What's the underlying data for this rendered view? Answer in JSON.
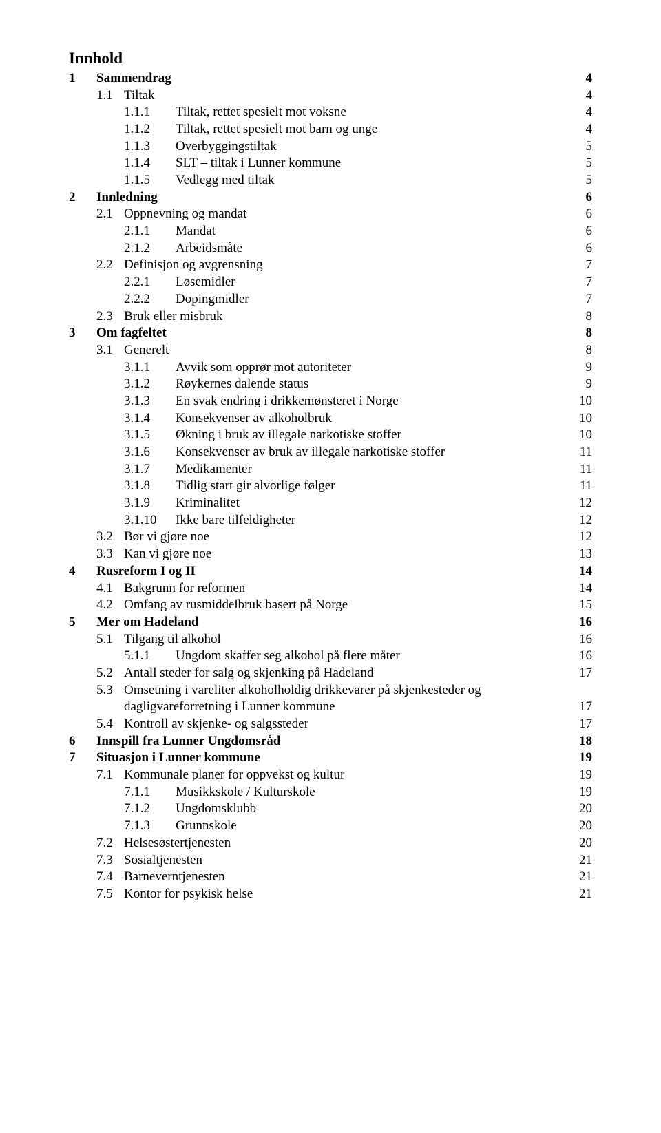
{
  "heading": "Innhold",
  "colors": {
    "text": "#000000",
    "background": "#ffffff"
  },
  "typography": {
    "font_family": "Times New Roman",
    "body_size_pt": 14,
    "heading_size_pt": 17,
    "bold_weight": 700
  },
  "entries": [
    {
      "num": "1",
      "title": "Sammendrag",
      "page": "4",
      "level": 0,
      "bold": true
    },
    {
      "num": "1.1",
      "title": "Tiltak",
      "page": "4",
      "level": 1
    },
    {
      "num": "1.1.1",
      "title": "Tiltak, rettet spesielt mot voksne",
      "page": "4",
      "level": 2
    },
    {
      "num": "1.1.2",
      "title": "Tiltak, rettet spesielt mot barn og unge",
      "page": "4",
      "level": 2
    },
    {
      "num": "1.1.3",
      "title": "Overbyggingstiltak",
      "page": "5",
      "level": 2
    },
    {
      "num": "1.1.4",
      "title": "SLT – tiltak i Lunner kommune",
      "page": "5",
      "level": 2
    },
    {
      "num": "1.1.5",
      "title": "Vedlegg med tiltak",
      "page": "5",
      "level": 2
    },
    {
      "num": "2",
      "title": "Innledning",
      "page": "6",
      "level": 0,
      "bold": true
    },
    {
      "num": "2.1",
      "title": "Oppnevning og mandat",
      "page": "6",
      "level": 1
    },
    {
      "num": "2.1.1",
      "title": "Mandat",
      "page": "6",
      "level": 2
    },
    {
      "num": "2.1.2",
      "title": "Arbeidsmåte",
      "page": "6",
      "level": 2
    },
    {
      "num": "2.2",
      "title": "Definisjon og avgrensning",
      "page": "7",
      "level": 1
    },
    {
      "num": "2.2.1",
      "title": "Løsemidler",
      "page": "7",
      "level": 2
    },
    {
      "num": "2.2.2",
      "title": "Dopingmidler",
      "page": "7",
      "level": 2
    },
    {
      "num": "2.3",
      "title": "Bruk eller misbruk",
      "page": "8",
      "level": 1
    },
    {
      "num": "3",
      "title": "Om fagfeltet",
      "page": "8",
      "level": 0,
      "bold": true
    },
    {
      "num": "3.1",
      "title": "Generelt",
      "page": "8",
      "level": 1
    },
    {
      "num": "3.1.1",
      "title": "Avvik som opprør mot autoriteter",
      "page": "9",
      "level": 2
    },
    {
      "num": "3.1.2",
      "title": "Røykernes dalende status",
      "page": "9",
      "level": 2
    },
    {
      "num": "3.1.3",
      "title": "En svak endring i drikkemønsteret i Norge",
      "page": "10",
      "level": 2
    },
    {
      "num": "3.1.4",
      "title": "Konsekvenser av alkoholbruk",
      "page": "10",
      "level": 2
    },
    {
      "num": "3.1.5",
      "title": "Økning i bruk av illegale narkotiske stoffer",
      "page": "10",
      "level": 2
    },
    {
      "num": "3.1.6",
      "title": "Konsekvenser av bruk av illegale narkotiske stoffer",
      "page": "11",
      "level": 2
    },
    {
      "num": "3.1.7",
      "title": "Medikamenter",
      "page": "11",
      "level": 2
    },
    {
      "num": "3.1.8",
      "title": "Tidlig start gir alvorlige følger",
      "page": "11",
      "level": 2
    },
    {
      "num": "3.1.9",
      "title": "Kriminalitet",
      "page": "12",
      "level": 2
    },
    {
      "num": "3.1.10",
      "title": "Ikke bare tilfeldigheter",
      "page": "12",
      "level": 2
    },
    {
      "num": "3.2",
      "title": "Bør vi gjøre noe",
      "page": "12",
      "level": 1
    },
    {
      "num": "3.3",
      "title": "Kan vi gjøre noe",
      "page": "13",
      "level": 1
    },
    {
      "num": "4",
      "title": "Rusreform I og II",
      "page": "14",
      "level": 0,
      "bold": true
    },
    {
      "num": "4.1",
      "title": "Bakgrunn for reformen",
      "page": "14",
      "level": 1
    },
    {
      "num": "4.2",
      "title": "Omfang av rusmiddelbruk basert på Norge",
      "page": "15",
      "level": 1
    },
    {
      "num": "5",
      "title": "Mer om Hadeland",
      "page": "16",
      "level": 0,
      "bold": true
    },
    {
      "num": "5.1",
      "title": "Tilgang til alkohol",
      "page": "16",
      "level": 1
    },
    {
      "num": "5.1.1",
      "title": "Ungdom skaffer seg alkohol på flere måter",
      "page": "16",
      "level": 2
    },
    {
      "num": "5.2",
      "title": "Antall steder for salg og skjenking på Hadeland",
      "page": "17",
      "level": 1
    },
    {
      "num": "5.3",
      "title": "Omsetning i vareliter alkoholholdig drikkevarer på skjenkesteder og",
      "page": "",
      "level": 1
    },
    {
      "num": "",
      "title": "dagligvareforretning i Lunner kommune",
      "page": "17",
      "level": 2,
      "continuation": true
    },
    {
      "num": "5.4",
      "title": "Kontroll av skjenke- og salgssteder",
      "page": "17",
      "level": 1
    },
    {
      "num": "6",
      "title": "Innspill fra Lunner Ungdomsråd",
      "page": "18",
      "level": 0,
      "bold": true
    },
    {
      "num": "7",
      "title": "Situasjon i Lunner kommune",
      "page": "19",
      "level": 0,
      "bold": true
    },
    {
      "num": "7.1",
      "title": "Kommunale planer for oppvekst og kultur",
      "page": "19",
      "level": 1
    },
    {
      "num": "7.1.1",
      "title": "Musikkskole / Kulturskole",
      "page": "19",
      "level": 2
    },
    {
      "num": "7.1.2",
      "title": "Ungdomsklubb",
      "page": "20",
      "level": 2
    },
    {
      "num": "7.1.3",
      "title": "Grunnskole",
      "page": "20",
      "level": 2
    },
    {
      "num": "7.2",
      "title": "Helsesøstertjenesten",
      "page": "20",
      "level": 1
    },
    {
      "num": "7.3",
      "title": "Sosialtjenesten",
      "page": "21",
      "level": 1
    },
    {
      "num": "7.4",
      "title": "Barneverntjenesten",
      "page": "21",
      "level": 1
    },
    {
      "num": "7.5",
      "title": "Kontor for psykisk helse",
      "page": "21",
      "level": 1
    }
  ]
}
